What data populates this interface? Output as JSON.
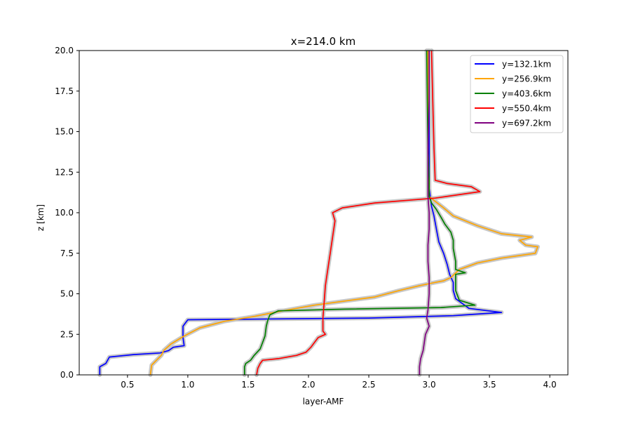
{
  "chart_data": {
    "type": "line",
    "title": "x=214.0 km",
    "xlabel": "layer-AMF",
    "ylabel": "z [km]",
    "xlim": [
      0.1,
      4.15
    ],
    "ylim": [
      0,
      20
    ],
    "xticks": [
      0.5,
      1.0,
      1.5,
      2.0,
      2.5,
      3.0,
      3.5,
      4.0
    ],
    "xtick_labels": [
      "0.5",
      "1.0",
      "1.5",
      "2.0",
      "2.5",
      "3.0",
      "3.5",
      "4.0"
    ],
    "yticks": [
      0.0,
      2.5,
      5.0,
      7.5,
      10.0,
      12.5,
      15.0,
      17.5,
      20.0
    ],
    "ytick_labels": [
      "0.0",
      "2.5",
      "5.0",
      "7.5",
      "10.0",
      "12.5",
      "15.0",
      "17.5",
      "20.0"
    ],
    "grid": false,
    "legend_position": "top-right",
    "uncertainty_band_color": "#c8c8c8",
    "series": [
      {
        "name": "y=132.1km",
        "color": "#0000ff",
        "points": [
          [
            0.27,
            0.0
          ],
          [
            0.27,
            0.5
          ],
          [
            0.32,
            0.7
          ],
          [
            0.35,
            1.1
          ],
          [
            0.55,
            1.25
          ],
          [
            0.77,
            1.35
          ],
          [
            0.84,
            1.5
          ],
          [
            0.88,
            1.7
          ],
          [
            0.97,
            1.8
          ],
          [
            0.96,
            2.3
          ],
          [
            0.96,
            3.0
          ],
          [
            0.98,
            3.2
          ],
          [
            1.0,
            3.4
          ],
          [
            2.5,
            3.5
          ],
          [
            3.2,
            3.65
          ],
          [
            3.3,
            3.7
          ],
          [
            3.6,
            3.85
          ],
          [
            3.33,
            4.1
          ],
          [
            3.22,
            4.7
          ],
          [
            3.2,
            5.2
          ],
          [
            3.2,
            5.7
          ],
          [
            3.17,
            6.2
          ],
          [
            3.15,
            6.8
          ],
          [
            3.12,
            7.5
          ],
          [
            3.08,
            8.2
          ],
          [
            3.06,
            9.0
          ],
          [
            3.04,
            9.8
          ],
          [
            3.02,
            10.4
          ],
          [
            3.0,
            11.5
          ],
          [
            3.0,
            14.0
          ],
          [
            3.0,
            20.0
          ]
        ]
      },
      {
        "name": "y=256.9km",
        "color": "#ffa500",
        "points": [
          [
            0.69,
            0.0
          ],
          [
            0.7,
            0.6
          ],
          [
            0.74,
            0.9
          ],
          [
            0.78,
            1.2
          ],
          [
            0.8,
            1.5
          ],
          [
            0.86,
            1.9
          ],
          [
            0.97,
            2.4
          ],
          [
            1.1,
            2.9
          ],
          [
            1.3,
            3.3
          ],
          [
            1.55,
            3.6
          ],
          [
            1.75,
            3.9
          ],
          [
            2.05,
            4.3
          ],
          [
            2.35,
            4.6
          ],
          [
            2.55,
            4.8
          ],
          [
            2.75,
            5.2
          ],
          [
            2.92,
            5.5
          ],
          [
            3.05,
            5.7
          ],
          [
            3.12,
            5.8
          ],
          [
            3.18,
            6.0
          ],
          [
            3.25,
            6.5
          ],
          [
            3.4,
            6.9
          ],
          [
            3.6,
            7.2
          ],
          [
            3.88,
            7.5
          ],
          [
            3.9,
            7.9
          ],
          [
            3.8,
            8.0
          ],
          [
            3.75,
            8.3
          ],
          [
            3.85,
            8.5
          ],
          [
            3.6,
            8.7
          ],
          [
            3.4,
            9.2
          ],
          [
            3.3,
            9.5
          ],
          [
            3.2,
            9.8
          ],
          [
            3.12,
            10.3
          ],
          [
            3.05,
            10.7
          ],
          [
            3.0,
            11.0
          ],
          [
            3.0,
            11.6
          ],
          [
            2.99,
            14.0
          ],
          [
            2.99,
            20.0
          ]
        ]
      },
      {
        "name": "y=403.6km",
        "color": "#008000",
        "points": [
          [
            1.47,
            0.0
          ],
          [
            1.47,
            0.5
          ],
          [
            1.48,
            0.7
          ],
          [
            1.52,
            0.9
          ],
          [
            1.55,
            1.2
          ],
          [
            1.6,
            1.6
          ],
          [
            1.62,
            2.0
          ],
          [
            1.64,
            2.4
          ],
          [
            1.65,
            3.0
          ],
          [
            1.66,
            3.3
          ],
          [
            1.68,
            3.7
          ],
          [
            1.75,
            3.95
          ],
          [
            2.3,
            4.05
          ],
          [
            3.1,
            4.15
          ],
          [
            3.38,
            4.3
          ],
          [
            3.25,
            4.6
          ],
          [
            3.22,
            5.2
          ],
          [
            3.22,
            5.8
          ],
          [
            3.22,
            6.2
          ],
          [
            3.3,
            6.3
          ],
          [
            3.22,
            6.5
          ],
          [
            3.22,
            7.0
          ],
          [
            3.2,
            7.8
          ],
          [
            3.2,
            8.3
          ],
          [
            3.18,
            8.8
          ],
          [
            3.13,
            9.3
          ],
          [
            3.1,
            9.7
          ],
          [
            3.06,
            10.2
          ],
          [
            3.02,
            10.6
          ],
          [
            3.0,
            11.0
          ],
          [
            3.0,
            12.0
          ],
          [
            2.99,
            14.0
          ],
          [
            2.98,
            20.0
          ]
        ]
      },
      {
        "name": "y=550.4km",
        "color": "#ff0000",
        "points": [
          [
            1.57,
            0.0
          ],
          [
            1.58,
            0.4
          ],
          [
            1.6,
            0.7
          ],
          [
            1.62,
            0.9
          ],
          [
            1.75,
            1.0
          ],
          [
            1.9,
            1.2
          ],
          [
            1.98,
            1.4
          ],
          [
            2.02,
            1.7
          ],
          [
            2.05,
            2.0
          ],
          [
            2.08,
            2.3
          ],
          [
            2.14,
            2.5
          ],
          [
            2.12,
            2.7
          ],
          [
            2.12,
            3.5
          ],
          [
            2.13,
            4.5
          ],
          [
            2.14,
            5.5
          ],
          [
            2.16,
            6.5
          ],
          [
            2.18,
            7.5
          ],
          [
            2.2,
            8.5
          ],
          [
            2.22,
            9.5
          ],
          [
            2.2,
            10.0
          ],
          [
            2.28,
            10.3
          ],
          [
            2.55,
            10.6
          ],
          [
            3.05,
            10.9
          ],
          [
            3.42,
            11.3
          ],
          [
            3.35,
            11.6
          ],
          [
            3.15,
            11.8
          ],
          [
            3.05,
            12.0
          ],
          [
            3.04,
            14.0
          ],
          [
            3.03,
            17.0
          ],
          [
            3.02,
            20.0
          ]
        ]
      },
      {
        "name": "y=697.2km",
        "color": "#800080",
        "points": [
          [
            2.92,
            0.0
          ],
          [
            2.92,
            0.5
          ],
          [
            2.93,
            1.0
          ],
          [
            2.95,
            1.5
          ],
          [
            2.96,
            2.0
          ],
          [
            2.97,
            2.5
          ],
          [
            3.0,
            3.0
          ],
          [
            2.98,
            3.5
          ],
          [
            2.99,
            4.0
          ],
          [
            3.0,
            5.0
          ],
          [
            3.0,
            6.0
          ],
          [
            2.99,
            7.0
          ],
          [
            2.99,
            8.0
          ],
          [
            3.0,
            9.0
          ],
          [
            3.0,
            10.0
          ],
          [
            2.99,
            11.0
          ],
          [
            2.99,
            12.0
          ],
          [
            2.99,
            14.0
          ],
          [
            3.0,
            17.0
          ],
          [
            3.0,
            20.0
          ]
        ]
      }
    ]
  }
}
